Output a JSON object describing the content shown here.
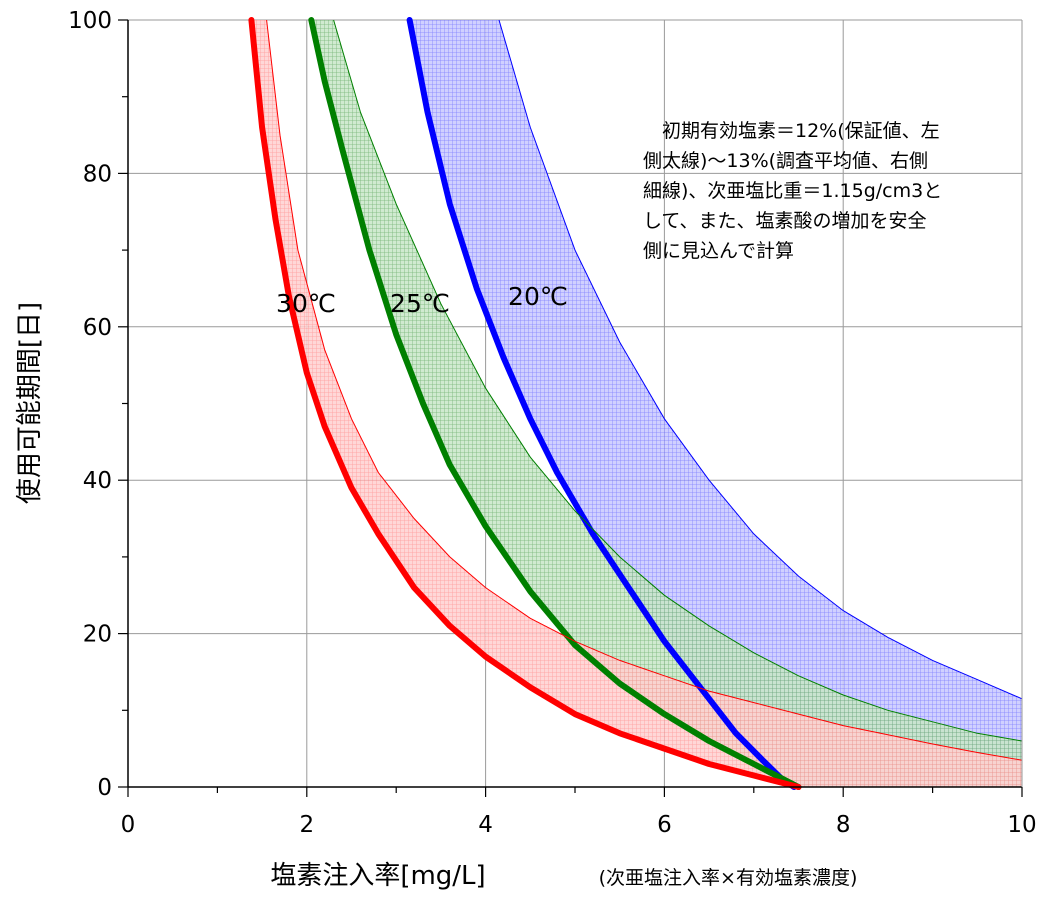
{
  "chart_data": {
    "type": "area",
    "xlabel": "塩素注入率[mg/L]",
    "xlabel_note": "(次亜塩注入率×有効塩素濃度)",
    "ylabel": "使用可能期間[日]",
    "xlim": [
      0,
      10
    ],
    "ylim": [
      0,
      100
    ],
    "x_ticks": [
      "0",
      "2",
      "4",
      "6",
      "8",
      "10"
    ],
    "y_ticks": [
      "0",
      "20",
      "40",
      "60",
      "80",
      "100"
    ],
    "grid": true,
    "annotation": [
      "初期有効塩素＝12%(保証値、左",
      "側太線)～13%(調査平均値、右側",
      "細線)、次亜塩比重＝1.15g/cm3と",
      "して、また、塩素酸の増加を安全",
      "側に見込んで計算"
    ],
    "series": [
      {
        "name": "20℃",
        "color": "#0000ff",
        "lower_thick": {
          "x": [
            3.15,
            3.35,
            3.6,
            3.9,
            4.2,
            4.5,
            4.8,
            5.2,
            5.6,
            6.0,
            6.4,
            6.8,
            7.1,
            7.3,
            7.45
          ],
          "y": [
            100,
            88,
            76,
            65,
            56,
            48,
            41,
            33,
            26,
            19,
            13,
            7,
            3.5,
            1.2,
            0
          ]
        },
        "upper_thin": {
          "x": [
            4.15,
            4.5,
            5.0,
            5.5,
            6.0,
            6.5,
            7.0,
            7.5,
            8.0,
            8.5,
            9.0,
            9.5,
            10.0
          ],
          "y": [
            100,
            86,
            70,
            58,
            48,
            40,
            33,
            27.5,
            23,
            19.5,
            16.5,
            14,
            11.5
          ]
        }
      },
      {
        "name": "25℃",
        "color": "#008000",
        "lower_thick": {
          "x": [
            2.05,
            2.2,
            2.4,
            2.7,
            3.0,
            3.3,
            3.6,
            4.0,
            4.5,
            5.0,
            5.5,
            6.0,
            6.5,
            7.0,
            7.3,
            7.5
          ],
          "y": [
            100,
            92,
            83,
            70,
            59,
            50,
            42,
            34,
            25.5,
            18.5,
            13.5,
            9.5,
            6,
            3,
            1.2,
            0
          ]
        },
        "upper_thin": {
          "x": [
            2.3,
            2.6,
            3.0,
            3.5,
            4.0,
            4.5,
            5.0,
            5.5,
            6.0,
            6.5,
            7.0,
            7.5,
            8.0,
            8.5,
            9.0,
            9.5,
            10.0
          ],
          "y": [
            100,
            88,
            76,
            63,
            52,
            43,
            36,
            30,
            25,
            21,
            17.5,
            14.5,
            12,
            10,
            8.5,
            7,
            6
          ]
        }
      },
      {
        "name": "30℃",
        "color": "#ff0000",
        "lower_thick": {
          "x": [
            1.38,
            1.5,
            1.65,
            1.8,
            2.0,
            2.2,
            2.5,
            2.8,
            3.2,
            3.6,
            4.0,
            4.5,
            5.0,
            5.5,
            6.0,
            6.5,
            7.0,
            7.5
          ],
          "y": [
            100,
            86,
            74,
            64,
            54,
            47,
            39,
            33,
            26,
            21,
            17,
            13,
            9.5,
            7,
            5,
            3,
            1.5,
            0
          ]
        },
        "upper_thin": {
          "x": [
            1.55,
            1.7,
            1.9,
            2.2,
            2.5,
            2.8,
            3.2,
            3.6,
            4.0,
            4.5,
            5.0,
            5.5,
            6.0,
            6.5,
            7.0,
            7.5,
            8.0,
            8.5,
            9.0,
            9.5,
            10.0
          ],
          "y": [
            100,
            85,
            70,
            57,
            48,
            41,
            35,
            30,
            26,
            22,
            19,
            16.5,
            14.5,
            12.5,
            11,
            9.5,
            8,
            6.8,
            5.6,
            4.5,
            3.5
          ]
        }
      }
    ]
  }
}
